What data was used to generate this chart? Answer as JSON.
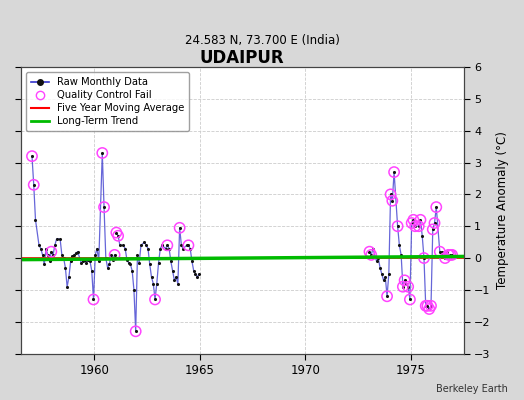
{
  "title": "UDAIPUR",
  "subtitle": "24.583 N, 73.700 E (India)",
  "ylabel": "Temperature Anomaly (°C)",
  "credit": "Berkeley Earth",
  "xlim": [
    1956.5,
    1977.5
  ],
  "ylim": [
    -3,
    6
  ],
  "yticks": [
    -3,
    -2,
    -1,
    0,
    1,
    2,
    3,
    4,
    5,
    6
  ],
  "xticks": [
    1960,
    1965,
    1970,
    1975
  ],
  "background_color": "#d8d8d8",
  "plot_bg_color": "#ffffff",
  "grid_color": "#cccccc",
  "raw_segment1": [
    [
      1957.042,
      3.2
    ],
    [
      1957.125,
      2.3
    ],
    [
      1957.208,
      1.2
    ],
    [
      1957.375,
      0.4
    ],
    [
      1957.458,
      0.3
    ],
    [
      1957.542,
      0.1
    ],
    [
      1957.625,
      -0.2
    ],
    [
      1957.708,
      0.3
    ],
    [
      1957.792,
      0.1
    ],
    [
      1957.875,
      -0.1
    ],
    [
      1957.958,
      0.2
    ],
    [
      1958.042,
      0.1
    ],
    [
      1958.125,
      0.4
    ],
    [
      1958.208,
      0.6
    ],
    [
      1958.375,
      0.6
    ],
    [
      1958.458,
      0.1
    ],
    [
      1958.542,
      0.0
    ],
    [
      1958.625,
      -0.3
    ],
    [
      1958.708,
      -0.9
    ],
    [
      1958.792,
      -0.6
    ],
    [
      1958.875,
      -0.1
    ],
    [
      1958.958,
      0.05
    ],
    [
      1959.042,
      0.1
    ],
    [
      1959.125,
      0.15
    ],
    [
      1959.208,
      0.2
    ],
    [
      1959.375,
      -0.15
    ],
    [
      1959.458,
      -0.1
    ],
    [
      1959.542,
      -0.05
    ],
    [
      1959.625,
      -0.15
    ],
    [
      1959.708,
      -0.05
    ],
    [
      1959.792,
      -0.1
    ],
    [
      1959.875,
      -0.4
    ],
    [
      1959.958,
      -1.3
    ],
    [
      1960.042,
      0.1
    ],
    [
      1960.125,
      0.3
    ],
    [
      1960.208,
      -0.1
    ],
    [
      1960.375,
      3.3
    ],
    [
      1960.458,
      1.6
    ],
    [
      1960.542,
      0.0
    ],
    [
      1960.625,
      -0.3
    ],
    [
      1960.708,
      -0.2
    ],
    [
      1960.792,
      0.1
    ],
    [
      1960.875,
      -0.05
    ],
    [
      1960.958,
      0.1
    ]
  ],
  "raw_segment2": [
    [
      1961.042,
      0.8
    ],
    [
      1961.125,
      0.7
    ],
    [
      1961.208,
      0.4
    ],
    [
      1961.375,
      0.4
    ],
    [
      1961.458,
      0.3
    ],
    [
      1961.542,
      -0.05
    ],
    [
      1961.625,
      -0.15
    ],
    [
      1961.708,
      -0.2
    ],
    [
      1961.792,
      -0.4
    ],
    [
      1961.875,
      -1.0
    ],
    [
      1961.958,
      -2.3
    ],
    [
      1962.042,
      0.1
    ],
    [
      1962.125,
      -0.15
    ],
    [
      1962.208,
      0.4
    ],
    [
      1962.375,
      0.5
    ],
    [
      1962.458,
      0.4
    ],
    [
      1962.542,
      0.3
    ],
    [
      1962.625,
      -0.2
    ],
    [
      1962.708,
      -0.6
    ],
    [
      1962.792,
      -0.8
    ],
    [
      1962.875,
      -1.3
    ],
    [
      1962.958,
      -0.8
    ],
    [
      1963.042,
      -0.15
    ],
    [
      1963.125,
      0.3
    ],
    [
      1963.208,
      0.4
    ],
    [
      1963.375,
      0.3
    ],
    [
      1963.458,
      0.4
    ],
    [
      1963.542,
      0.3
    ],
    [
      1963.625,
      -0.1
    ],
    [
      1963.708,
      -0.4
    ],
    [
      1963.792,
      -0.7
    ],
    [
      1963.875,
      -0.6
    ],
    [
      1963.958,
      -0.8
    ],
    [
      1964.042,
      0.95
    ],
    [
      1964.125,
      0.4
    ],
    [
      1964.208,
      0.3
    ],
    [
      1964.375,
      0.4
    ],
    [
      1964.458,
      0.4
    ],
    [
      1964.542,
      0.3
    ],
    [
      1964.625,
      -0.1
    ],
    [
      1964.708,
      -0.4
    ],
    [
      1964.792,
      -0.5
    ],
    [
      1964.875,
      -0.6
    ],
    [
      1964.958,
      -0.5
    ]
  ],
  "raw_segment3": [
    [
      1973.042,
      0.2
    ],
    [
      1973.125,
      0.1
    ],
    [
      1973.208,
      0.3
    ],
    [
      1973.375,
      -0.1
    ],
    [
      1973.458,
      0.0
    ],
    [
      1973.542,
      -0.3
    ],
    [
      1973.625,
      -0.5
    ],
    [
      1973.708,
      -0.7
    ],
    [
      1973.792,
      -0.6
    ],
    [
      1973.875,
      -1.2
    ],
    [
      1973.958,
      -0.5
    ],
    [
      1974.042,
      2.0
    ],
    [
      1974.125,
      1.8
    ],
    [
      1974.208,
      2.7
    ],
    [
      1974.375,
      1.0
    ],
    [
      1974.458,
      0.4
    ],
    [
      1974.542,
      0.1
    ],
    [
      1974.625,
      -0.9
    ],
    [
      1974.708,
      -0.7
    ],
    [
      1974.792,
      -0.8
    ],
    [
      1974.875,
      -0.9
    ],
    [
      1974.958,
      -1.3
    ],
    [
      1975.042,
      1.1
    ],
    [
      1975.125,
      1.2
    ],
    [
      1975.208,
      1.0
    ],
    [
      1975.375,
      1.0
    ],
    [
      1975.458,
      1.2
    ],
    [
      1975.542,
      0.7
    ],
    [
      1975.625,
      0.0
    ],
    [
      1975.708,
      -1.5
    ],
    [
      1975.792,
      -1.5
    ],
    [
      1975.875,
      -1.6
    ],
    [
      1975.958,
      -1.5
    ],
    [
      1976.042,
      0.9
    ],
    [
      1976.125,
      1.1
    ],
    [
      1976.208,
      1.6
    ],
    [
      1976.375,
      0.2
    ],
    [
      1976.458,
      0.2
    ],
    [
      1976.542,
      0.1
    ],
    [
      1976.625,
      0.0
    ],
    [
      1976.708,
      0.2
    ],
    [
      1976.792,
      0.1
    ],
    [
      1976.875,
      0.1
    ],
    [
      1976.958,
      0.1
    ]
  ],
  "qc_seg1": [
    [
      1957.042,
      3.2
    ],
    [
      1957.125,
      2.3
    ],
    [
      1957.958,
      0.2
    ],
    [
      1959.958,
      -1.3
    ],
    [
      1960.375,
      3.3
    ],
    [
      1960.458,
      1.6
    ],
    [
      1960.958,
      0.1
    ]
  ],
  "qc_seg2": [
    [
      1961.042,
      0.8
    ],
    [
      1961.125,
      0.7
    ],
    [
      1961.958,
      -2.3
    ],
    [
      1962.875,
      -1.3
    ],
    [
      1963.458,
      0.4
    ],
    [
      1964.042,
      0.95
    ],
    [
      1964.458,
      0.4
    ]
  ],
  "qc_seg3": [
    [
      1973.042,
      0.2
    ],
    [
      1973.125,
      0.1
    ],
    [
      1973.875,
      -1.2
    ],
    [
      1974.042,
      2.0
    ],
    [
      1974.125,
      1.8
    ],
    [
      1974.208,
      2.7
    ],
    [
      1974.375,
      1.0
    ],
    [
      1974.625,
      -0.9
    ],
    [
      1974.708,
      -0.7
    ],
    [
      1974.875,
      -0.9
    ],
    [
      1974.958,
      -1.3
    ],
    [
      1975.042,
      1.1
    ],
    [
      1975.125,
      1.2
    ],
    [
      1975.208,
      1.0
    ],
    [
      1975.375,
      1.0
    ],
    [
      1975.458,
      1.2
    ],
    [
      1975.625,
      0.0
    ],
    [
      1975.708,
      -1.5
    ],
    [
      1975.792,
      -1.5
    ],
    [
      1975.875,
      -1.6
    ],
    [
      1975.958,
      -1.5
    ],
    [
      1976.042,
      0.9
    ],
    [
      1976.125,
      1.1
    ],
    [
      1976.208,
      1.6
    ],
    [
      1976.375,
      0.2
    ],
    [
      1976.625,
      0.0
    ],
    [
      1976.792,
      0.1
    ],
    [
      1976.875,
      0.1
    ],
    [
      1976.958,
      0.1
    ]
  ],
  "trend_x": [
    1956.5,
    1977.5
  ],
  "trend_y": [
    -0.05,
    0.05
  ],
  "line_color": "#3333cc",
  "dot_color": "#111111",
  "qc_color": "#ff44ff",
  "moving_avg_color": "#ff0000",
  "trend_color": "#00bb00"
}
